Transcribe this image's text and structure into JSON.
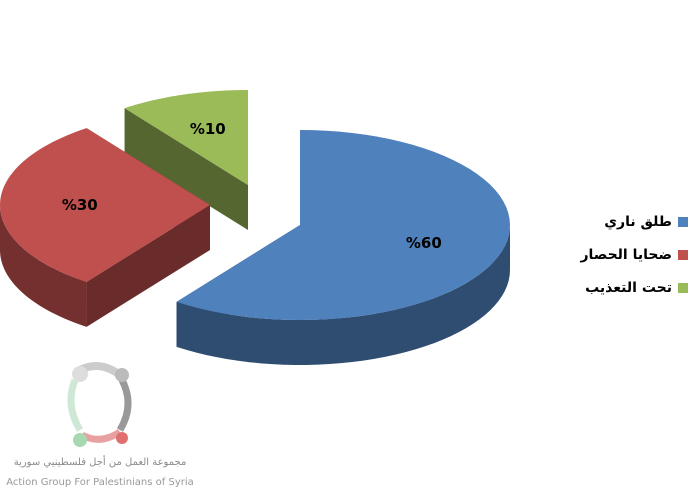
{
  "chart_data": {
    "type": "pie",
    "style": "3d-exploded",
    "slices": [
      {
        "label": "طلق ناري",
        "value": 60,
        "data_label": "%60",
        "color": "#4f81bd"
      },
      {
        "label": "ضحايا الحصار",
        "value": 30,
        "data_label": "%30",
        "color": "#c0504d"
      },
      {
        "label": "تحت التعذيب",
        "value": 10,
        "data_label": "%10",
        "color": "#9bbb59"
      }
    ],
    "legend_position": "right"
  },
  "logo": {
    "arabic_text": "مجموعة العمل من أجل فلسطينيي سورية",
    "english_text": "Action Group For Palestinians of Syria"
  }
}
